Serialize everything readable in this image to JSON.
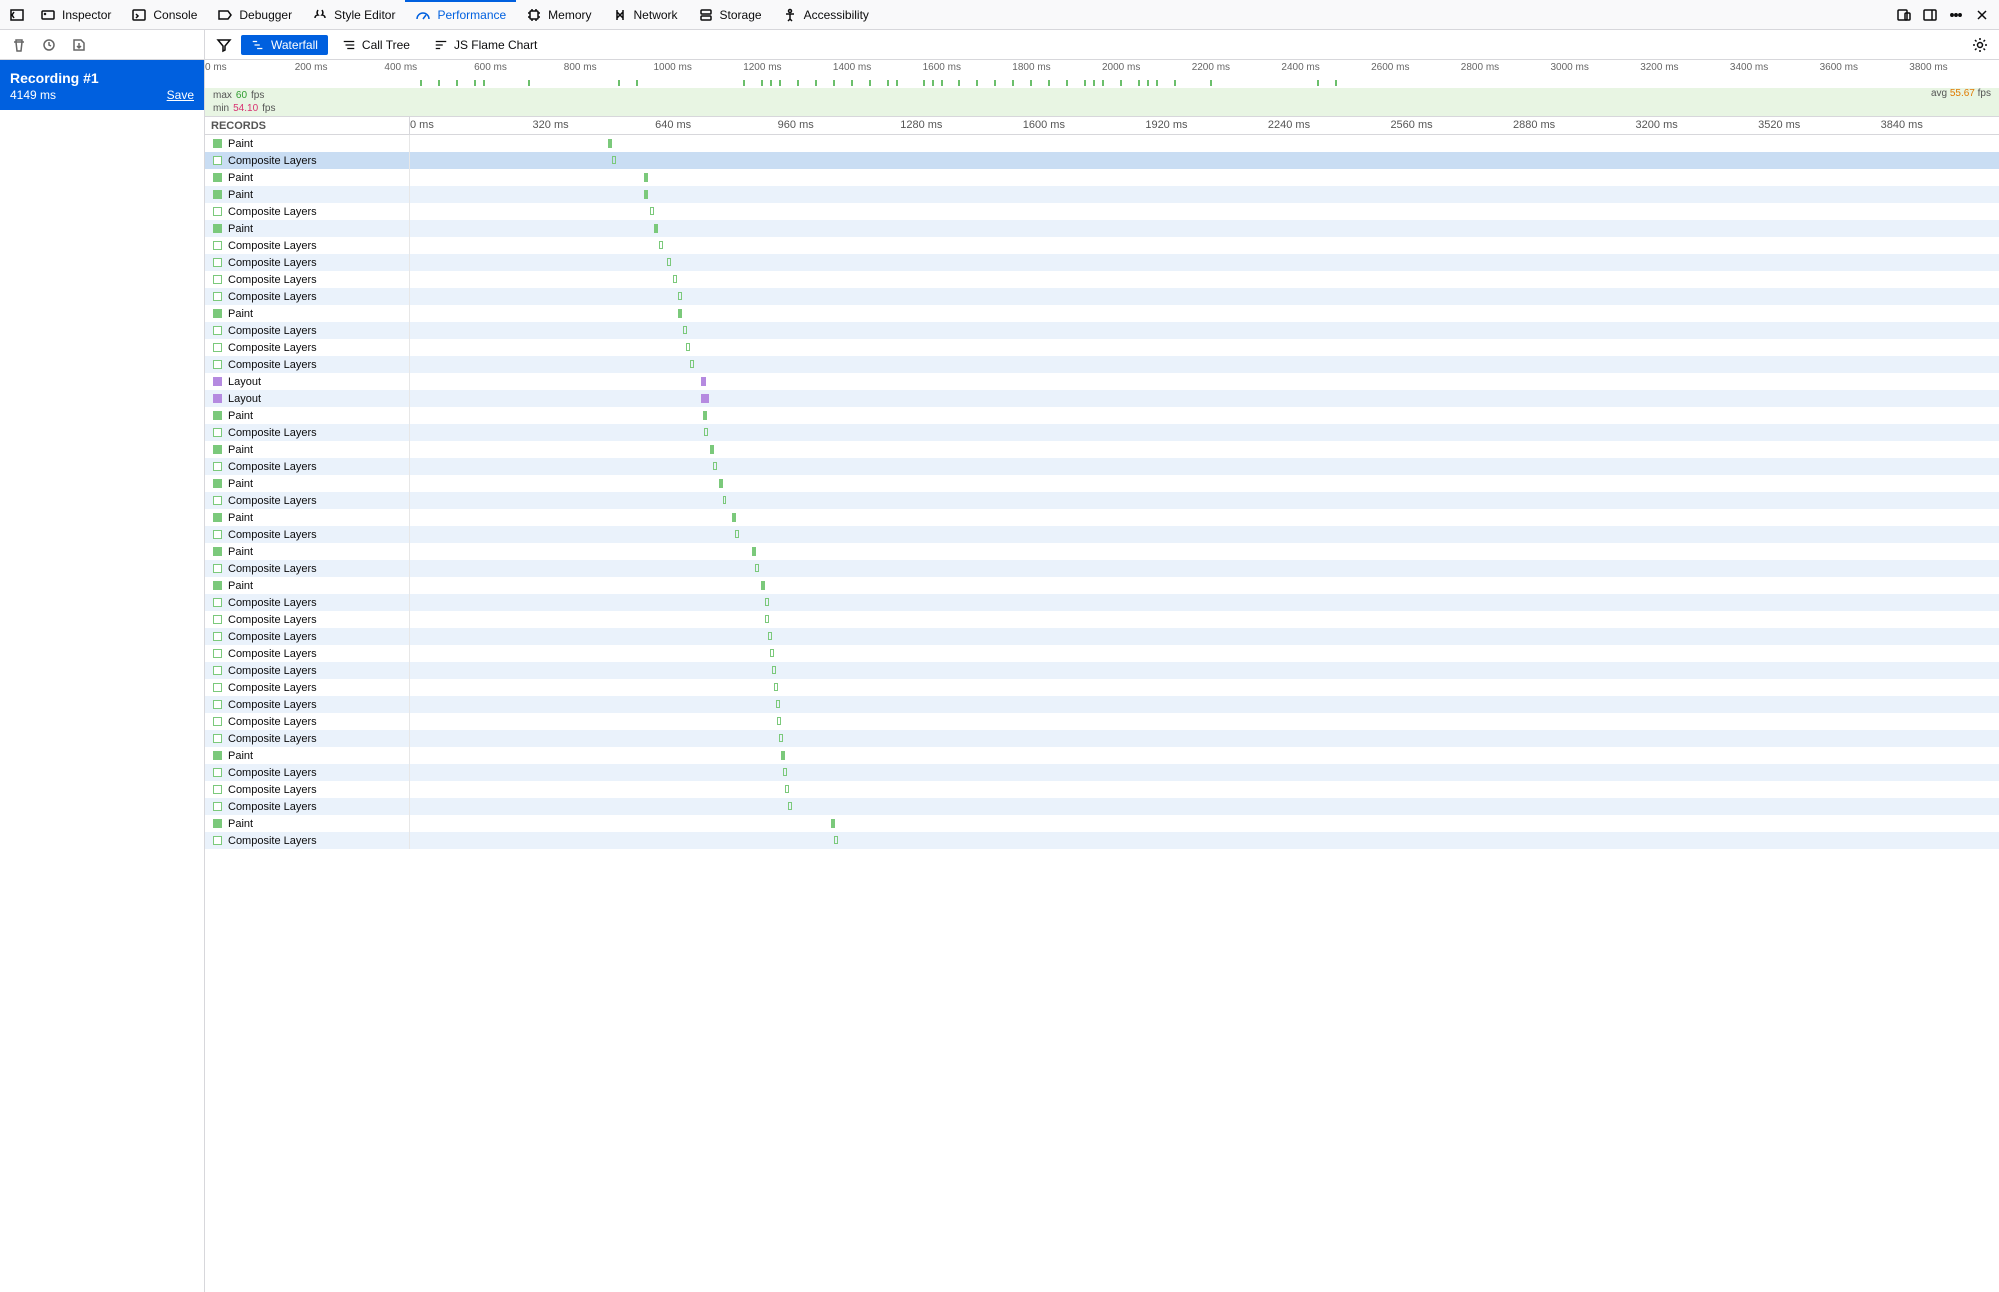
{
  "colors": {
    "accent": "#0060df",
    "paint": "#7bc97b",
    "composite_border": "#7bc97b",
    "layout": "#b58ae0",
    "fps_band_bg": "#e8f5e3",
    "zebra_alt": "#eaf2fb",
    "highlight_row": "#c9ddf3"
  },
  "tabs": [
    {
      "id": "inspector",
      "label": "Inspector"
    },
    {
      "id": "console",
      "label": "Console"
    },
    {
      "id": "debugger",
      "label": "Debugger"
    },
    {
      "id": "styleeditor",
      "label": "Style Editor"
    },
    {
      "id": "performance",
      "label": "Performance",
      "active": true
    },
    {
      "id": "memory",
      "label": "Memory"
    },
    {
      "id": "network",
      "label": "Network"
    },
    {
      "id": "storage",
      "label": "Storage"
    },
    {
      "id": "accessibility",
      "label": "Accessibility"
    }
  ],
  "views": [
    {
      "id": "waterfall",
      "label": "Waterfall",
      "active": true
    },
    {
      "id": "calltree",
      "label": "Call Tree"
    },
    {
      "id": "flamechart",
      "label": "JS Flame Chart"
    }
  ],
  "recording": {
    "title": "Recording #1",
    "duration": "4149 ms",
    "save": "Save"
  },
  "overview": {
    "start": 0,
    "end": 4000,
    "tick_step": 200,
    "tick_suffix": " ms",
    "markers_pct": [
      12,
      13,
      14,
      15,
      15.5,
      18,
      23,
      24,
      30,
      31,
      31.5,
      32,
      33,
      34,
      35,
      36,
      37,
      38,
      38.5,
      40,
      40.5,
      41,
      42,
      43,
      44,
      45,
      46,
      47,
      48,
      49,
      49.5,
      50,
      51,
      52,
      52.5,
      53,
      54,
      56,
      62,
      63
    ]
  },
  "fps": {
    "max_label": "max",
    "max_value": "60",
    "min_label": "min",
    "min_value": "54.10",
    "avg_label": "avg",
    "avg_value": "55.67",
    "unit": "fps"
  },
  "records_header": {
    "label": "RECORDS",
    "start": 0,
    "end": 4149,
    "tick_step": 320,
    "tick_suffix": " ms"
  },
  "track": {
    "total_ms": 4149
  },
  "rows": [
    {
      "type": "paint",
      "label": "Paint",
      "start": 516,
      "dur": 12
    },
    {
      "type": "composite",
      "label": "Composite Layers",
      "start": 528,
      "dur": 6,
      "highlight": true
    },
    {
      "type": "paint",
      "label": "Paint",
      "start": 610,
      "dur": 10
    },
    {
      "type": "paint",
      "label": "Paint",
      "start": 612,
      "dur": 10
    },
    {
      "type": "composite",
      "label": "Composite Layers",
      "start": 626,
      "dur": 5
    },
    {
      "type": "paint",
      "label": "Paint",
      "start": 638,
      "dur": 8
    },
    {
      "type": "composite",
      "label": "Composite Layers",
      "start": 650,
      "dur": 5
    },
    {
      "type": "composite",
      "label": "Composite Layers",
      "start": 670,
      "dur": 5
    },
    {
      "type": "composite",
      "label": "Composite Layers",
      "start": 686,
      "dur": 5
    },
    {
      "type": "composite",
      "label": "Composite Layers",
      "start": 700,
      "dur": 5
    },
    {
      "type": "paint",
      "label": "Paint",
      "start": 700,
      "dur": 8
    },
    {
      "type": "composite",
      "label": "Composite Layers",
      "start": 712,
      "dur": 5
    },
    {
      "type": "composite",
      "label": "Composite Layers",
      "start": 720,
      "dur": 5
    },
    {
      "type": "composite",
      "label": "Composite Layers",
      "start": 730,
      "dur": 5
    },
    {
      "type": "layout",
      "label": "Layout",
      "start": 760,
      "dur": 14
    },
    {
      "type": "layout",
      "label": "Layout",
      "start": 760,
      "dur": 20
    },
    {
      "type": "paint",
      "label": "Paint",
      "start": 764,
      "dur": 6
    },
    {
      "type": "composite",
      "label": "Composite Layers",
      "start": 768,
      "dur": 5
    },
    {
      "type": "paint",
      "label": "Paint",
      "start": 784,
      "dur": 8
    },
    {
      "type": "composite",
      "label": "Composite Layers",
      "start": 792,
      "dur": 5
    },
    {
      "type": "paint",
      "label": "Paint",
      "start": 808,
      "dur": 6
    },
    {
      "type": "composite",
      "label": "Composite Layers",
      "start": 816,
      "dur": 5
    },
    {
      "type": "paint",
      "label": "Paint",
      "start": 840,
      "dur": 8
    },
    {
      "type": "composite",
      "label": "Composite Layers",
      "start": 848,
      "dur": 5
    },
    {
      "type": "paint",
      "label": "Paint",
      "start": 892,
      "dur": 6
    },
    {
      "type": "composite",
      "label": "Composite Layers",
      "start": 900,
      "dur": 5
    },
    {
      "type": "paint",
      "label": "Paint",
      "start": 916,
      "dur": 8
    },
    {
      "type": "composite",
      "label": "Composite Layers",
      "start": 926,
      "dur": 5
    },
    {
      "type": "composite",
      "label": "Composite Layers",
      "start": 928,
      "dur": 5
    },
    {
      "type": "composite",
      "label": "Composite Layers",
      "start": 936,
      "dur": 5
    },
    {
      "type": "composite",
      "label": "Composite Layers",
      "start": 940,
      "dur": 5
    },
    {
      "type": "composite",
      "label": "Composite Layers",
      "start": 944,
      "dur": 5
    },
    {
      "type": "composite",
      "label": "Composite Layers",
      "start": 950,
      "dur": 5
    },
    {
      "type": "composite",
      "label": "Composite Layers",
      "start": 956,
      "dur": 5
    },
    {
      "type": "composite",
      "label": "Composite Layers",
      "start": 958,
      "dur": 5
    },
    {
      "type": "composite",
      "label": "Composite Layers",
      "start": 964,
      "dur": 5
    },
    {
      "type": "paint",
      "label": "Paint",
      "start": 970,
      "dur": 6
    },
    {
      "type": "composite",
      "label": "Composite Layers",
      "start": 974,
      "dur": 5
    },
    {
      "type": "composite",
      "label": "Composite Layers",
      "start": 980,
      "dur": 5
    },
    {
      "type": "composite",
      "label": "Composite Layers",
      "start": 986,
      "dur": 5
    },
    {
      "type": "paint",
      "label": "Paint",
      "start": 1100,
      "dur": 8
    },
    {
      "type": "composite",
      "label": "Composite Layers",
      "start": 1108,
      "dur": 5
    }
  ]
}
